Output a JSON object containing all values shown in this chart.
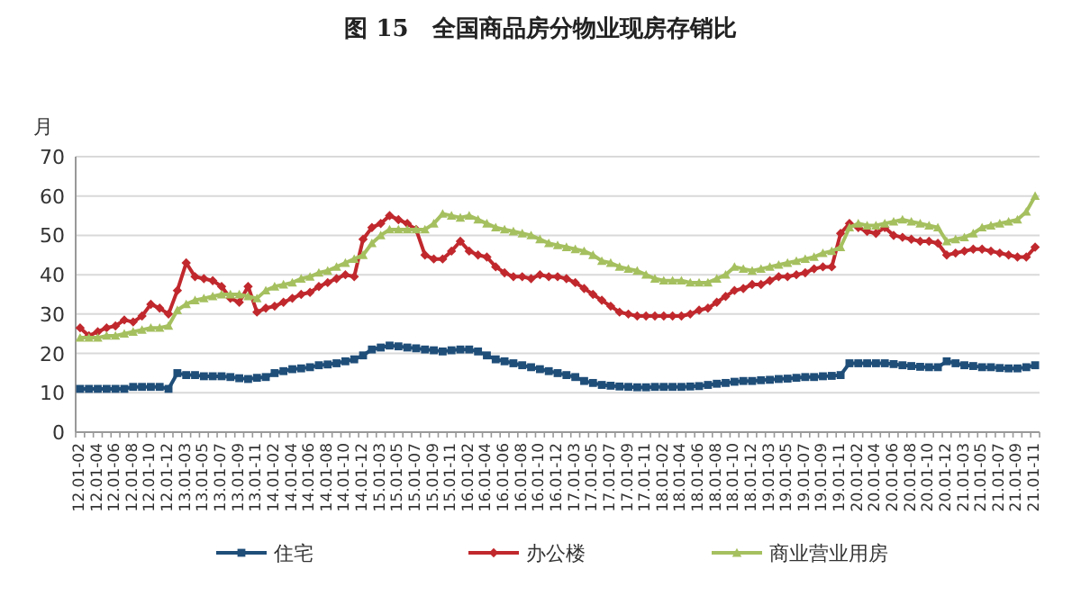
{
  "chart_data": {
    "type": "line",
    "title": "图 15　全国商品房分物业现房存销比",
    "ylabel": "月",
    "categories": [
      "12.01-02",
      null,
      "12.01-04",
      null,
      "12.01-06",
      null,
      "12.01-08",
      null,
      "12.01-10",
      null,
      "12.01-12",
      null,
      "13.01-03",
      null,
      "13.01-05",
      null,
      "13.01-07",
      null,
      "13.01-09",
      null,
      "13.01-11",
      null,
      "14.01-02",
      null,
      "14.01-04",
      null,
      "14.01-06",
      null,
      "14.01-08",
      null,
      "14.01-10",
      null,
      "14.01-12",
      null,
      "15.01-03",
      null,
      "15.01-05",
      null,
      "15.01-07",
      null,
      "15.01-09",
      null,
      "15.01-11",
      null,
      "16.01-02",
      null,
      "16.01-04",
      null,
      "16.01-06",
      null,
      "16.01-08",
      null,
      "16.01-10",
      null,
      "16.01-12",
      null,
      "17.01-03",
      null,
      "17.01-05",
      null,
      "17.01-07",
      null,
      "17.01-09",
      null,
      "17.01-11",
      null,
      "18.01-02",
      null,
      "18.01-04",
      null,
      "18.01-06",
      null,
      "18.01-08",
      null,
      "18.01-10",
      null,
      "18.01-12",
      null,
      "19.01-03",
      null,
      "19.01-05",
      null,
      "19.01-07",
      null,
      "19.01-09",
      null,
      "19.01-11",
      null,
      "20.01-02",
      null,
      "20.01-04",
      null,
      "20.01-06",
      null,
      "20.01-08",
      null,
      "20.01-10",
      null,
      "20.01-12",
      null,
      "21.01-03",
      null,
      "21.01-05",
      null,
      "21.01-07",
      null,
      "21.01-09",
      null,
      "21.01-11"
    ],
    "series": [
      {
        "name": "住宅",
        "color": "#1f4e79",
        "marker": "square",
        "values": [
          11,
          11,
          11,
          11,
          11,
          11,
          11.5,
          11.5,
          11.5,
          11.5,
          11,
          15,
          14.5,
          14.5,
          14.2,
          14.2,
          14.2,
          14,
          13.7,
          13.5,
          13.8,
          14,
          15,
          15.5,
          16,
          16.2,
          16.5,
          17,
          17.2,
          17.5,
          18,
          18.5,
          19.5,
          21,
          21.5,
          22,
          21.8,
          21.5,
          21.3,
          21,
          20.8,
          20.5,
          20.8,
          21,
          21,
          20.5,
          19.5,
          18.5,
          18,
          17.5,
          17,
          16.5,
          16,
          15.5,
          15,
          14.5,
          14,
          13,
          12.5,
          12,
          11.8,
          11.6,
          11.5,
          11.4,
          11.4,
          11.5,
          11.5,
          11.5,
          11.5,
          11.6,
          11.7,
          12,
          12.3,
          12.5,
          12.8,
          13,
          13,
          13.2,
          13.3,
          13.5,
          13.6,
          13.8,
          14,
          14,
          14.2,
          14.3,
          14.5,
          17.5,
          17.5,
          17.5,
          17.5,
          17.5,
          17.3,
          17,
          16.8,
          16.6,
          16.5,
          16.5,
          18,
          17.5,
          17,
          16.8,
          16.5,
          16.5,
          16.3,
          16.2,
          16.2,
          16.5,
          17
        ]
      },
      {
        "name": "办公楼",
        "color": "#c0282d",
        "marker": "diamond",
        "values": [
          26.5,
          24.5,
          25.5,
          26.5,
          27,
          28.5,
          28,
          29.5,
          32.5,
          31.5,
          30,
          36,
          43,
          39.5,
          39,
          38.5,
          37,
          34,
          33,
          37,
          30.5,
          31.5,
          32,
          33,
          34,
          35,
          35.5,
          37,
          38,
          39,
          40,
          39.5,
          49,
          52,
          53,
          55,
          54,
          53,
          51.5,
          45,
          44,
          44,
          46,
          48.5,
          46,
          45,
          44.5,
          42,
          40.5,
          39.5,
          39.5,
          39,
          40,
          39.5,
          39.5,
          39,
          38,
          36.5,
          35,
          33.5,
          32,
          30.5,
          30,
          29.5,
          29.5,
          29.5,
          29.5,
          29.5,
          29.5,
          30,
          31,
          31.5,
          33,
          34.5,
          36,
          36.5,
          37.5,
          37.5,
          38.5,
          39.5,
          39.5,
          40,
          40.5,
          41.5,
          42,
          42,
          50.5,
          53,
          52,
          51,
          50.5,
          52,
          50,
          49.5,
          49,
          48.5,
          48.5,
          48,
          45,
          45.5,
          46,
          46.5,
          46.5,
          46,
          45.5,
          45,
          44.5,
          44.5,
          47
        ]
      },
      {
        "name": "商业营业用房",
        "color": "#a5c05f",
        "marker": "triangle",
        "values": [
          24,
          24,
          24,
          24.5,
          24.5,
          25,
          25.5,
          26,
          26.5,
          26.5,
          27,
          31,
          32.5,
          33.5,
          34,
          34.5,
          35,
          35,
          35,
          34.5,
          34,
          36,
          37,
          37.5,
          38,
          39,
          39.5,
          40.5,
          41,
          42,
          43,
          44,
          45,
          48,
          50,
          51.5,
          51.5,
          51.5,
          51.5,
          51.5,
          53,
          55.5,
          55,
          54.5,
          55,
          54,
          53,
          52,
          51.5,
          51,
          50.5,
          50,
          49,
          48,
          47.5,
          47,
          46.5,
          46,
          45,
          43.5,
          43,
          42,
          41.5,
          41,
          40,
          39,
          38.5,
          38.5,
          38.5,
          38,
          38,
          38,
          39,
          40,
          42,
          41.5,
          41,
          41.5,
          42,
          42.5,
          43,
          43.5,
          44,
          44.5,
          45.5,
          46,
          47,
          52,
          53,
          52.5,
          52.5,
          53,
          53.5,
          54,
          53.5,
          53,
          52.5,
          52,
          48.5,
          49,
          49.5,
          50.5,
          52,
          52.5,
          53,
          53.5,
          54,
          56,
          60
        ]
      }
    ],
    "ylim": [
      0,
      70
    ],
    "yticks": [
      0,
      10,
      20,
      30,
      40,
      50,
      60,
      70
    ],
    "grid": "y",
    "legend": "bottom",
    "line_style": "solid"
  }
}
